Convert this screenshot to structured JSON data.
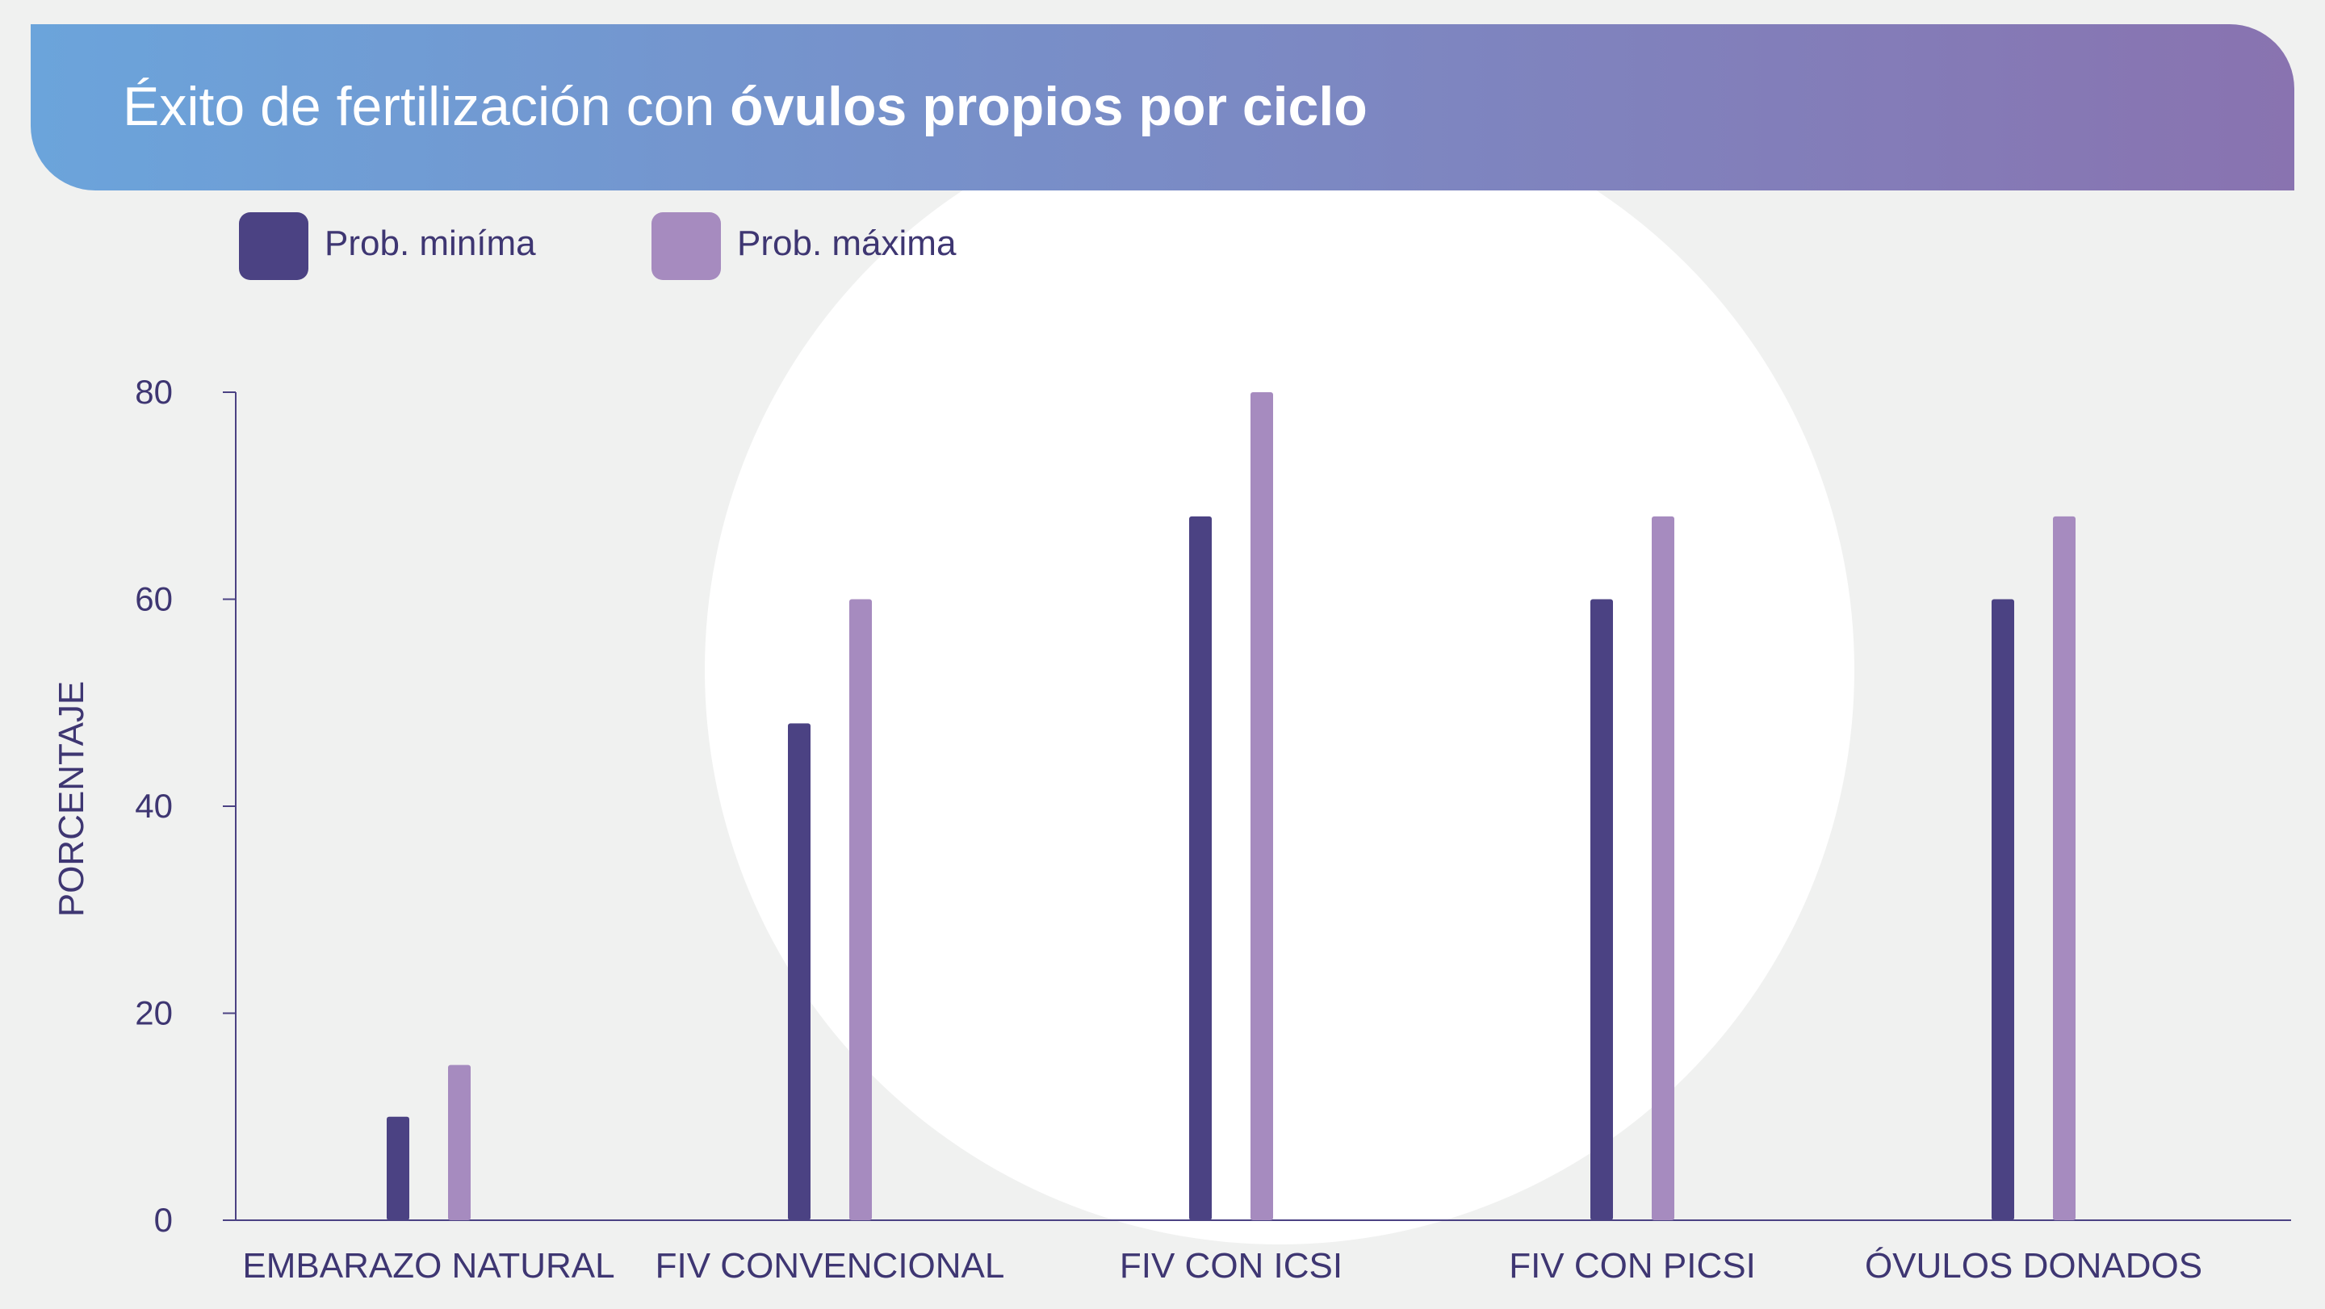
{
  "title_regular": "Éxito de fertilización con ",
  "title_bold": "óvulos propios por ciclo",
  "legend": [
    {
      "label": "Prob. miníma",
      "color": "#4b4283"
    },
    {
      "label": "Prob. máxima",
      "color": "#a68bbf"
    }
  ],
  "colors": {
    "banner_start": "#6ba4db",
    "banner_end": "#8973b0",
    "text": "#3e3672",
    "axis": "#4b4283",
    "background": "#f0f1f0",
    "silhouette": "#ffffff"
  },
  "chart_data": {
    "type": "bar",
    "title": "Éxito de fertilización con óvulos propios por ciclo",
    "xlabel": "",
    "ylabel": "PORCENTAJE",
    "ylim": [
      0,
      80
    ],
    "yticks": [
      0,
      20,
      40,
      60,
      80
    ],
    "grid": false,
    "legend_position": "top-left",
    "categories": [
      "EMBARAZO NATURAL",
      "FIV CONVENCIONAL",
      "FIV CON ICSI",
      "FIV CON PICSI",
      "ÓVULOS DONADOS"
    ],
    "series": [
      {
        "name": "Prob. miníma",
        "values": [
          10,
          48,
          68,
          60,
          60
        ]
      },
      {
        "name": "Prob. máxima",
        "values": [
          15,
          60,
          80,
          68,
          68
        ]
      }
    ]
  }
}
